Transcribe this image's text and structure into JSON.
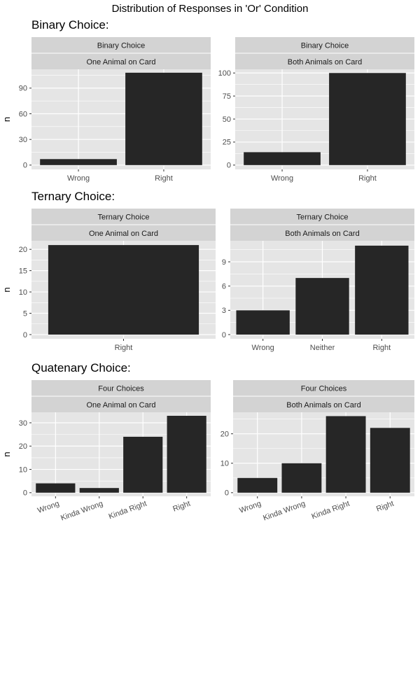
{
  "title": "Distribution of Responses in 'Or' Condition",
  "colors": {
    "panel_bg": "#e5e5e5",
    "strip_bg": "#d3d3d3",
    "grid": "#ffffff",
    "bar": "#262626",
    "text": "#000000",
    "tick_text": "#4d4d4d"
  },
  "chart_data": [
    {
      "section_title": "Binary Choice:",
      "type": "bar",
      "ylabel": "n",
      "panels": [
        {
          "strip": [
            "Binary Choice",
            "One Animal on Card"
          ],
          "categories": [
            "Wrong",
            "Right"
          ],
          "values": [
            7,
            108
          ],
          "ylim": [
            0,
            112
          ],
          "yticks": [
            0,
            30,
            60,
            90
          ]
        },
        {
          "strip": [
            "Binary Choice",
            "Both Animals on Card"
          ],
          "categories": [
            "Wrong",
            "Right"
          ],
          "values": [
            14,
            100
          ],
          "ylim": [
            0,
            104
          ],
          "yticks": [
            0,
            25,
            50,
            75,
            100
          ]
        }
      ]
    },
    {
      "section_title": "Ternary Choice:",
      "type": "bar",
      "ylabel": "n",
      "panels": [
        {
          "strip": [
            "Ternary Choice",
            "One Animal on Card"
          ],
          "categories": [
            "Right"
          ],
          "values": [
            21
          ],
          "ylim": [
            0,
            22
          ],
          "yticks": [
            0,
            5,
            10,
            15,
            20
          ]
        },
        {
          "strip": [
            "Ternary Choice",
            "Both Animals on Card"
          ],
          "categories": [
            "Wrong",
            "Neither",
            "Right"
          ],
          "values": [
            3,
            7,
            11
          ],
          "ylim": [
            0,
            11.6
          ],
          "yticks": [
            0,
            3,
            6,
            9
          ]
        }
      ]
    },
    {
      "section_title": "Quatenary Choice:",
      "type": "bar",
      "ylabel": "n",
      "xlabel_rotated": true,
      "panels": [
        {
          "strip": [
            "Four Choices",
            "One Animal on Card"
          ],
          "categories": [
            "Wrong",
            "Kinda Wrong",
            "Kinda Right",
            "Right"
          ],
          "values": [
            4,
            2,
            24,
            33
          ],
          "ylim": [
            0,
            34.5
          ],
          "yticks": [
            0,
            10,
            20,
            30
          ]
        },
        {
          "strip": [
            "Four Choices",
            "Both Animals on Card"
          ],
          "categories": [
            "Wrong",
            "Kinda Wrong",
            "Kinda Right",
            "Right"
          ],
          "values": [
            5,
            10,
            26,
            22
          ],
          "ylim": [
            0,
            27.3
          ],
          "yticks": [
            0,
            10,
            20
          ]
        }
      ]
    }
  ]
}
